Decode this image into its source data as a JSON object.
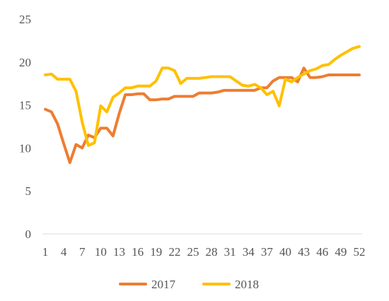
{
  "chart_data": {
    "type": "line",
    "title": "",
    "xlabel": "",
    "ylabel": "",
    "x": [
      1,
      2,
      3,
      4,
      5,
      6,
      7,
      8,
      9,
      10,
      11,
      12,
      13,
      14,
      15,
      16,
      17,
      18,
      19,
      20,
      21,
      22,
      23,
      24,
      25,
      26,
      27,
      28,
      29,
      30,
      31,
      32,
      33,
      34,
      35,
      36,
      37,
      38,
      39,
      40,
      41,
      42,
      43,
      44,
      45,
      46,
      47,
      48,
      49,
      50,
      51,
      52
    ],
    "x_tick_labels": [
      "1",
      "4",
      "7",
      "10",
      "13",
      "16",
      "19",
      "22",
      "25",
      "28",
      "31",
      "34",
      "37",
      "40",
      "43",
      "46",
      "49",
      "52"
    ],
    "ylim": [
      0,
      25
    ],
    "y_ticks": [
      0,
      5,
      10,
      15,
      20,
      25
    ],
    "grid": false,
    "legend_position": "bottom",
    "series": [
      {
        "name": "2017",
        "color": "#ED7D31",
        "values": [
          14.5,
          14.2,
          12.8,
          10.5,
          8.3,
          10.4,
          10.0,
          11.5,
          11.2,
          12.3,
          12.3,
          11.4,
          14.0,
          16.2,
          16.2,
          16.3,
          16.3,
          15.6,
          15.6,
          15.7,
          15.7,
          16.0,
          16.0,
          16.0,
          16.0,
          16.4,
          16.4,
          16.4,
          16.5,
          16.7,
          16.7,
          16.7,
          16.7,
          16.7,
          16.7,
          17.0,
          17.0,
          17.8,
          18.2,
          18.2,
          18.2,
          17.7,
          19.3,
          18.2,
          18.2,
          18.3,
          18.5,
          18.5,
          18.5,
          18.5,
          18.5,
          18.5
        ]
      },
      {
        "name": "2018",
        "color": "#FFC000",
        "values": [
          18.5,
          18.6,
          18.0,
          18.0,
          18.0,
          16.6,
          13.0,
          10.3,
          10.6,
          14.9,
          14.2,
          15.9,
          16.4,
          17.0,
          17.0,
          17.2,
          17.2,
          17.2,
          17.8,
          19.3,
          19.3,
          19.0,
          17.5,
          18.1,
          18.1,
          18.1,
          18.2,
          18.3,
          18.3,
          18.3,
          18.3,
          17.8,
          17.3,
          17.2,
          17.4,
          17.0,
          16.2,
          16.6,
          14.9,
          18.0,
          17.7,
          18.2,
          18.6,
          19.0,
          19.2,
          19.6,
          19.7,
          20.3,
          20.8,
          21.2,
          21.6,
          21.8
        ]
      }
    ]
  }
}
